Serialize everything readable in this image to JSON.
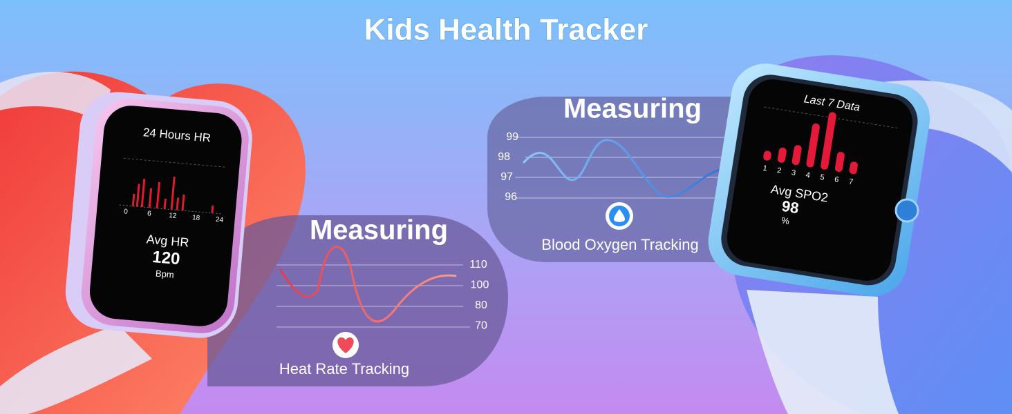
{
  "header": {
    "title": "Kids Health Tracker"
  },
  "heart_rate": {
    "watch": {
      "title": "24 Hours HR",
      "x_labels": [
        0,
        6,
        12,
        18,
        24
      ],
      "label": "Avg HR",
      "value": 120,
      "unit": "Bpm"
    },
    "panel": {
      "heading": "Measuring",
      "y_labels": [
        110,
        100,
        80,
        70
      ],
      "caption": "Heat Rate Tracking"
    }
  },
  "blood_oxygen": {
    "panel": {
      "heading": "Measuring",
      "y_labels": [
        99,
        98,
        97,
        96
      ],
      "caption": "Blood Oxygen Tracking"
    },
    "watch": {
      "title": "Last 7 Data",
      "x_labels": [
        1,
        2,
        3,
        4,
        5,
        6,
        7
      ],
      "label": "Avg SPO2",
      "value": 98,
      "unit": "%"
    }
  }
}
